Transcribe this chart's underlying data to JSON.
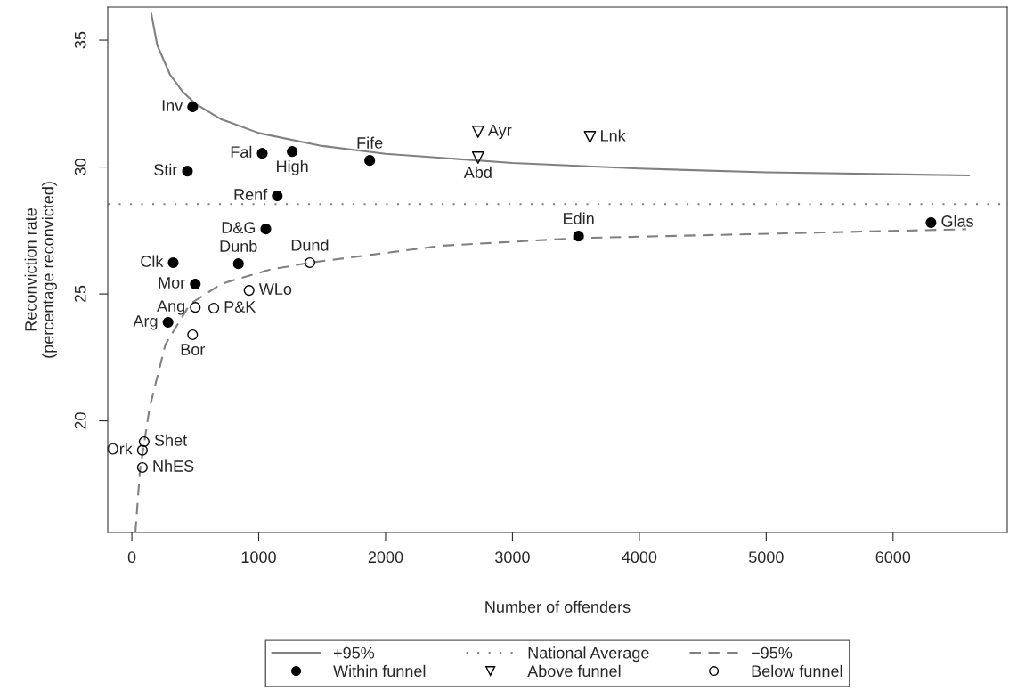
{
  "chart_data": {
    "type": "scatter",
    "xlabel": "Number of offenders",
    "ylabel": "Reconviction rate\n(percentage reconvicted)",
    "xlim": [
      -190,
      6900
    ],
    "ylim": [
      15.6,
      36.3
    ],
    "xticks": [
      0,
      1000,
      2000,
      3000,
      4000,
      5000,
      6000
    ],
    "yticks": [
      20,
      25,
      30,
      35
    ],
    "grid": false,
    "legend": "bottom",
    "series": [
      {
        "name": "+95%",
        "type": "line",
        "color": "#808080",
        "line_style": "solid",
        "marker": "none",
        "x": [
          153,
          200,
          300,
          400,
          500,
          700,
          1000,
          1500,
          2000,
          3000,
          4000,
          5000,
          6600
        ],
        "values": [
          36.05,
          34.8,
          33.65,
          32.97,
          32.5,
          31.89,
          31.34,
          30.83,
          30.52,
          30.16,
          29.94,
          29.79,
          29.67
        ]
      },
      {
        "name": "−95%",
        "type": "line",
        "color": "#808080",
        "line_style": "dashed",
        "marker": "none",
        "x": [
          28,
          63,
          139,
          264,
          458,
          708,
          1083,
          1403,
          2444,
          3521,
          6576
        ],
        "values": [
          15.6,
          18.0,
          20.5,
          23.0,
          24.6,
          25.4,
          25.95,
          26.23,
          26.9,
          27.2,
          27.55
        ]
      },
      {
        "name": "Within funnel",
        "color": "#000000",
        "marker": "circle",
        "x": [
          479,
          438,
          1028,
          1264,
          1875,
          1146,
          1056,
          840,
          326,
          500,
          285,
          3521,
          6299
        ],
        "values": [
          32.37,
          29.84,
          30.54,
          30.61,
          30.26,
          28.86,
          27.56,
          26.19,
          26.23,
          25.39,
          23.88,
          27.28,
          27.81
        ]
      },
      {
        "name": "Above funnel",
        "color": "#000000",
        "marker": "triangle",
        "x": [
          2729,
          3611,
          2729
        ],
        "values": [
          31.39,
          31.18,
          30.37
        ]
      },
      {
        "name": "Below funnel",
        "color": "#000000",
        "marker": "circle",
        "x": [
          1403,
          924,
          500,
          646,
          479,
          97,
          83,
          83
        ],
        "values": [
          26.23,
          25.14,
          24.47,
          24.44,
          23.39,
          19.18,
          18.84,
          18.16
        ]
      }
    ],
    "ref_lines": [
      {
        "axis": "y",
        "value": 28.54,
        "label": "National Average",
        "color": "#808080",
        "line_style": "dotted"
      }
    ],
    "annotations": [
      {
        "text": "Inv",
        "x": 479,
        "y": 32.37
      },
      {
        "text": "Stir",
        "x": 438,
        "y": 29.84
      },
      {
        "text": "Fal",
        "x": 1028,
        "y": 30.54
      },
      {
        "text": "High",
        "x": 1264,
        "y": 30.61
      },
      {
        "text": "Fife",
        "x": 1875,
        "y": 30.26
      },
      {
        "text": "Renf",
        "x": 1146,
        "y": 28.86
      },
      {
        "text": "D&G",
        "x": 1056,
        "y": 27.56
      },
      {
        "text": "Dunb",
        "x": 840,
        "y": 26.19
      },
      {
        "text": "Clk",
        "x": 326,
        "y": 26.23
      },
      {
        "text": "Mor",
        "x": 500,
        "y": 25.39
      },
      {
        "text": "Arg",
        "x": 285,
        "y": 23.88
      },
      {
        "text": "Edin",
        "x": 3521,
        "y": 27.28
      },
      {
        "text": "Glas",
        "x": 6299,
        "y": 27.81
      },
      {
        "text": "Ayr",
        "x": 2729,
        "y": 31.39
      },
      {
        "text": "Lnk",
        "x": 3611,
        "y": 31.18
      },
      {
        "text": "Abd",
        "x": 2729,
        "y": 30.37
      },
      {
        "text": "Dund",
        "x": 1403,
        "y": 26.23
      },
      {
        "text": "WLo",
        "x": 924,
        "y": 25.14
      },
      {
        "text": "Ang",
        "x": 500,
        "y": 24.47
      },
      {
        "text": "P&K",
        "x": 646,
        "y": 24.44
      },
      {
        "text": "Bor",
        "x": 479,
        "y": 23.39
      },
      {
        "text": "Shet",
        "x": 97,
        "y": 19.18
      },
      {
        "text": "Ork",
        "x": 83,
        "y": 18.84
      },
      {
        "text": "NhES",
        "x": 83,
        "y": 18.16
      }
    ]
  }
}
